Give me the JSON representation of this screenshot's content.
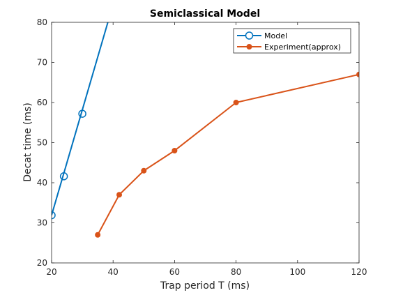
{
  "chart_data": {
    "type": "line",
    "title": "Semiclassical Model",
    "xlabel": "Trap period T (ms)",
    "ylabel": "Decat time (ms)",
    "xlim": [
      20,
      120
    ],
    "ylim": [
      20,
      80
    ],
    "xticks": [
      20,
      40,
      60,
      80,
      100,
      120
    ],
    "yticks": [
      20,
      30,
      40,
      50,
      60,
      70,
      80
    ],
    "grid": false,
    "legend_position": "top-right",
    "series": [
      {
        "name": "Model",
        "color": "#0072BD",
        "marker": "open-circle",
        "x": [
          20,
          24,
          30
        ],
        "y": [
          31.9,
          41.6,
          57.2
        ],
        "line_x": [
          20,
          38.3
        ],
        "line_y": [
          31.9,
          80
        ]
      },
      {
        "name": "Experiment(approx)",
        "color": "#D95319",
        "marker": "filled-circle",
        "x": [
          35,
          42,
          50,
          60,
          80,
          120
        ],
        "y": [
          27,
          37,
          43,
          48,
          60,
          67
        ]
      }
    ]
  }
}
